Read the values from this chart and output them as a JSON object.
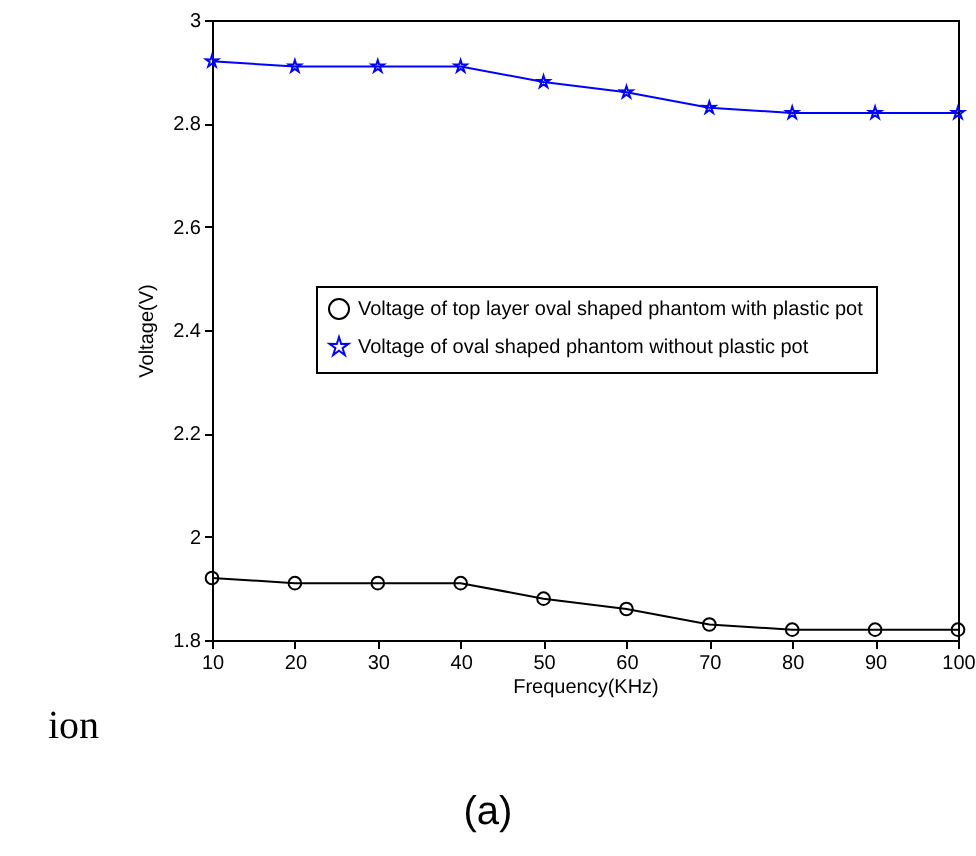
{
  "chart_data": {
    "type": "line",
    "xlabel": "Frequency(KHz)",
    "ylabel": "Voltage(V)",
    "x": [
      10,
      20,
      30,
      40,
      50,
      60,
      70,
      80,
      90,
      100
    ],
    "series": [
      {
        "name": "Voltage of top layer oval shaped phantom with plastic pot",
        "color": "#000000",
        "marker": "circle",
        "values": [
          1.92,
          1.91,
          1.91,
          1.91,
          1.88,
          1.86,
          1.83,
          1.82,
          1.82,
          1.82
        ]
      },
      {
        "name": "Voltage of oval shaped phantom without plastic pot",
        "color": "#0000ff",
        "marker": "star",
        "values": [
          2.92,
          2.91,
          2.91,
          2.91,
          2.88,
          2.86,
          2.83,
          2.82,
          2.82,
          2.82
        ]
      }
    ],
    "xlim": [
      10,
      100
    ],
    "xticks": [
      10,
      20,
      30,
      40,
      50,
      60,
      70,
      80,
      90,
      100
    ],
    "ylim": [
      1.8,
      3
    ],
    "yticks": [
      1.8,
      2,
      2.2,
      2.4,
      2.6,
      2.8,
      3
    ],
    "grid": false,
    "legend": "center",
    "line_style": "solid",
    "annotations": [
      "ion",
      "(a)"
    ]
  }
}
